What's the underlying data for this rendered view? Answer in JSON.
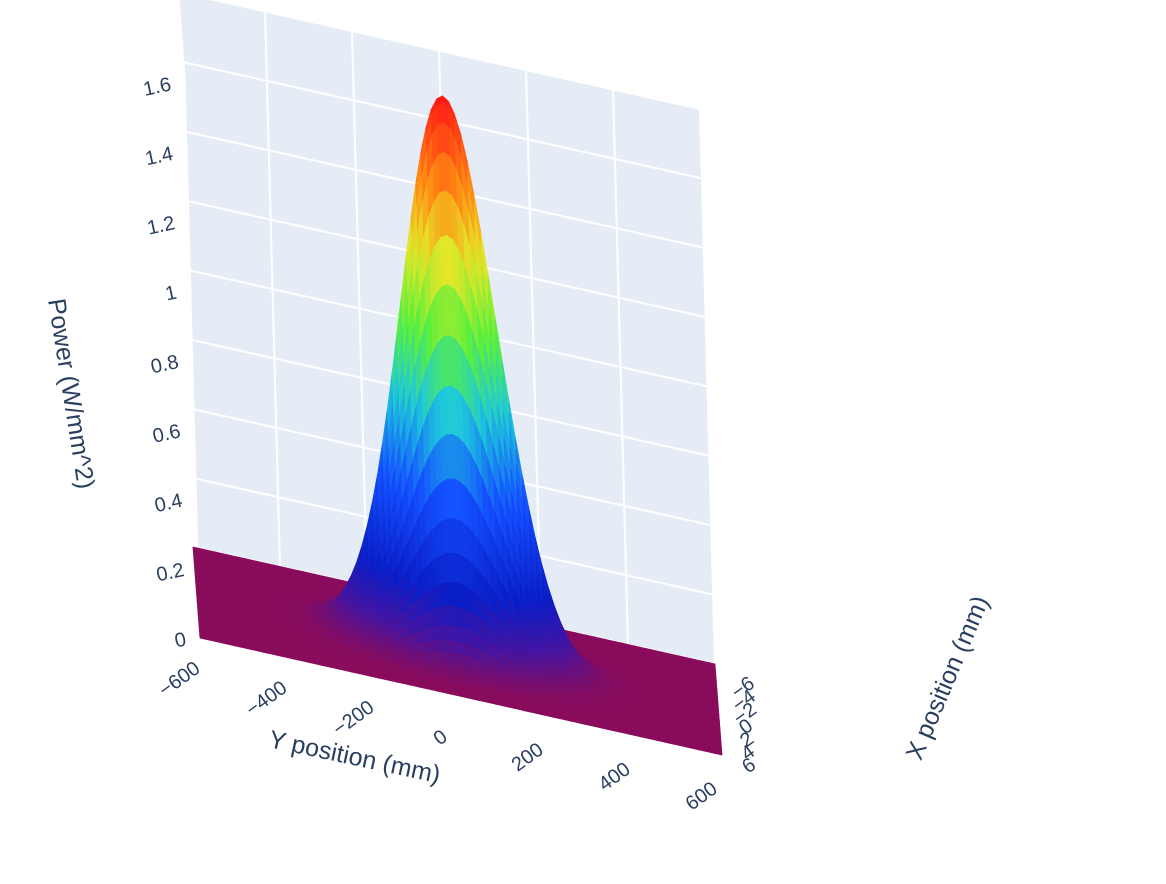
{
  "chart_data": {
    "type": "surface",
    "surface_kind": "3d-surface",
    "background_color": "#e5ecf6",
    "grid_color": "#ffffff",
    "text_color": "#2a3f5f",
    "colorscale": "jet",
    "show_colorbar": false,
    "peak_value": 1.6,
    "peak_position": {
      "x": 0,
      "y": 0
    },
    "x_axis": {
      "title": "X position (mm)",
      "range": [
        -7,
        7
      ],
      "tick_values": [
        -6,
        -4,
        -2,
        0,
        2,
        4,
        6
      ],
      "tick_labels": [
        "−6",
        "−4",
        "−2",
        "0",
        "2",
        "4",
        "6"
      ]
    },
    "y_axis": {
      "title": "Y position (mm)",
      "range": [
        -600,
        600
      ],
      "tick_values": [
        -600,
        -400,
        -200,
        0,
        200,
        400,
        600
      ],
      "tick_labels": [
        "−600",
        "−400",
        "−200",
        "0",
        "200",
        "400",
        "600"
      ]
    },
    "z_axis": {
      "title": "Power (W/mm^2)",
      "range": [
        0,
        1.6
      ],
      "tick_values": [
        0,
        0.2,
        0.4,
        0.6,
        0.8,
        1,
        1.2,
        1.4,
        1.6
      ],
      "tick_labels": [
        "0",
        "0.2",
        "0.4",
        "0.6",
        "0.8",
        "1",
        "1.2",
        "1.4",
        "1.6"
      ]
    },
    "gaussian_sigma": {
      "x": 1.7,
      "y": 110
    },
    "base_color": "#8a0c5c"
  }
}
